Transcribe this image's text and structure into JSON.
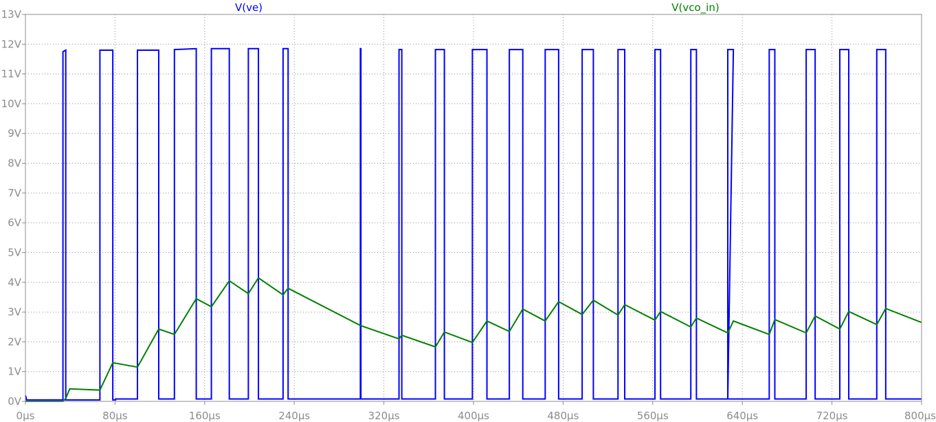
{
  "chart_data": {
    "type": "line",
    "x_unit": "µs",
    "y_unit": "V",
    "xlim": [
      0,
      800
    ],
    "ylim": [
      0,
      13
    ],
    "grid": true,
    "x_ticks": [
      0,
      80,
      160,
      240,
      320,
      400,
      480,
      560,
      640,
      720,
      800
    ],
    "x_tick_labels": [
      "0µs",
      "80µs",
      "160µs",
      "240µs",
      "320µs",
      "400µs",
      "480µs",
      "560µs",
      "640µs",
      "720µs",
      "800µs"
    ],
    "y_ticks": [
      0,
      1,
      2,
      3,
      4,
      5,
      6,
      7,
      8,
      9,
      10,
      11,
      12,
      13
    ],
    "y_tick_labels": [
      "0V",
      "1V",
      "2V",
      "3V",
      "4V",
      "5V",
      "6V",
      "7V",
      "8V",
      "9V",
      "10V",
      "11V",
      "12V",
      "13V"
    ],
    "series": [
      {
        "name": "V(ve)",
        "color": "#0000ff",
        "x": [
          0,
          0.5,
          1,
          33.5,
          33.5,
          36,
          36,
          39.5,
          39.5,
          66.5,
          66.5,
          78,
          78,
          80.5,
          80.5,
          100,
          100,
          119,
          119,
          133,
          133,
          152.5,
          152.5,
          166,
          166,
          182,
          182,
          199,
          199,
          208,
          208,
          230,
          230,
          234.5,
          234.5,
          299,
          299,
          299.5,
          299.5,
          333.5,
          333.5,
          336,
          336,
          366,
          366,
          374,
          374,
          399,
          399,
          412,
          412,
          432,
          432,
          444,
          444,
          464,
          464,
          476,
          476,
          497,
          497,
          507,
          507,
          529,
          529,
          535,
          535,
          562,
          562,
          567,
          567,
          594,
          594,
          599,
          599,
          627,
          627,
          632,
          627,
          664,
          664,
          669,
          669,
          697,
          697,
          705,
          705,
          727,
          727,
          735,
          735,
          760,
          760,
          768,
          768,
          800
        ],
        "y": [
          0.2,
          0.15,
          0.05,
          0.05,
          11.75,
          11.8,
          0.05,
          0.05,
          0.05,
          0.05,
          11.8,
          11.8,
          0.05,
          0.05,
          0.08,
          0.08,
          11.8,
          11.8,
          0.08,
          0.08,
          11.82,
          11.85,
          0.08,
          0.08,
          11.85,
          11.85,
          0.08,
          0.08,
          11.85,
          11.85,
          0.08,
          0.08,
          11.85,
          11.85,
          0.08,
          0.08,
          11.85,
          11.85,
          0.08,
          0.08,
          11.82,
          11.82,
          0.08,
          0.08,
          11.82,
          11.82,
          0.08,
          0.08,
          11.82,
          11.82,
          0.08,
          0.08,
          11.82,
          11.82,
          0.08,
          0.08,
          11.82,
          11.82,
          0.08,
          0.08,
          11.82,
          11.82,
          0.08,
          0.08,
          11.82,
          11.82,
          0.08,
          0.08,
          11.82,
          11.82,
          0.08,
          0.08,
          11.82,
          11.82,
          0.08,
          0.08,
          11.82,
          11.82,
          0.08,
          0.08,
          11.82,
          11.82,
          0.08,
          0.08,
          11.82,
          11.82,
          0.08,
          0.08,
          11.82,
          11.82,
          0.08,
          0.08,
          11.82,
          11.82,
          0.08,
          0.08
        ]
      },
      {
        "name": "V(vco_in)",
        "color": "#008000",
        "x": [
          0,
          33.5,
          36,
          39.5,
          66.5,
          78,
          100,
          119,
          133,
          152.5,
          166,
          182,
          199,
          208,
          230,
          234.5,
          299,
          333.5,
          336,
          366,
          374,
          399,
          412,
          432,
          444,
          464,
          476,
          497,
          507,
          529,
          535,
          562,
          567,
          594,
          599,
          627,
          632,
          664,
          669,
          697,
          705,
          727,
          735,
          760,
          768,
          800
        ],
        "y": [
          0,
          0,
          0.1,
          0.42,
          0.38,
          1.3,
          1.15,
          2.43,
          2.25,
          3.45,
          3.18,
          4.05,
          3.62,
          4.15,
          3.58,
          3.8,
          2.55,
          2.1,
          2.22,
          1.83,
          2.33,
          1.98,
          2.7,
          2.35,
          3.1,
          2.7,
          3.35,
          2.92,
          3.4,
          2.9,
          3.25,
          2.73,
          3.02,
          2.5,
          2.8,
          2.3,
          2.7,
          2.25,
          2.75,
          2.3,
          2.87,
          2.43,
          3.02,
          2.58,
          3.12,
          2.65
        ]
      }
    ]
  }
}
